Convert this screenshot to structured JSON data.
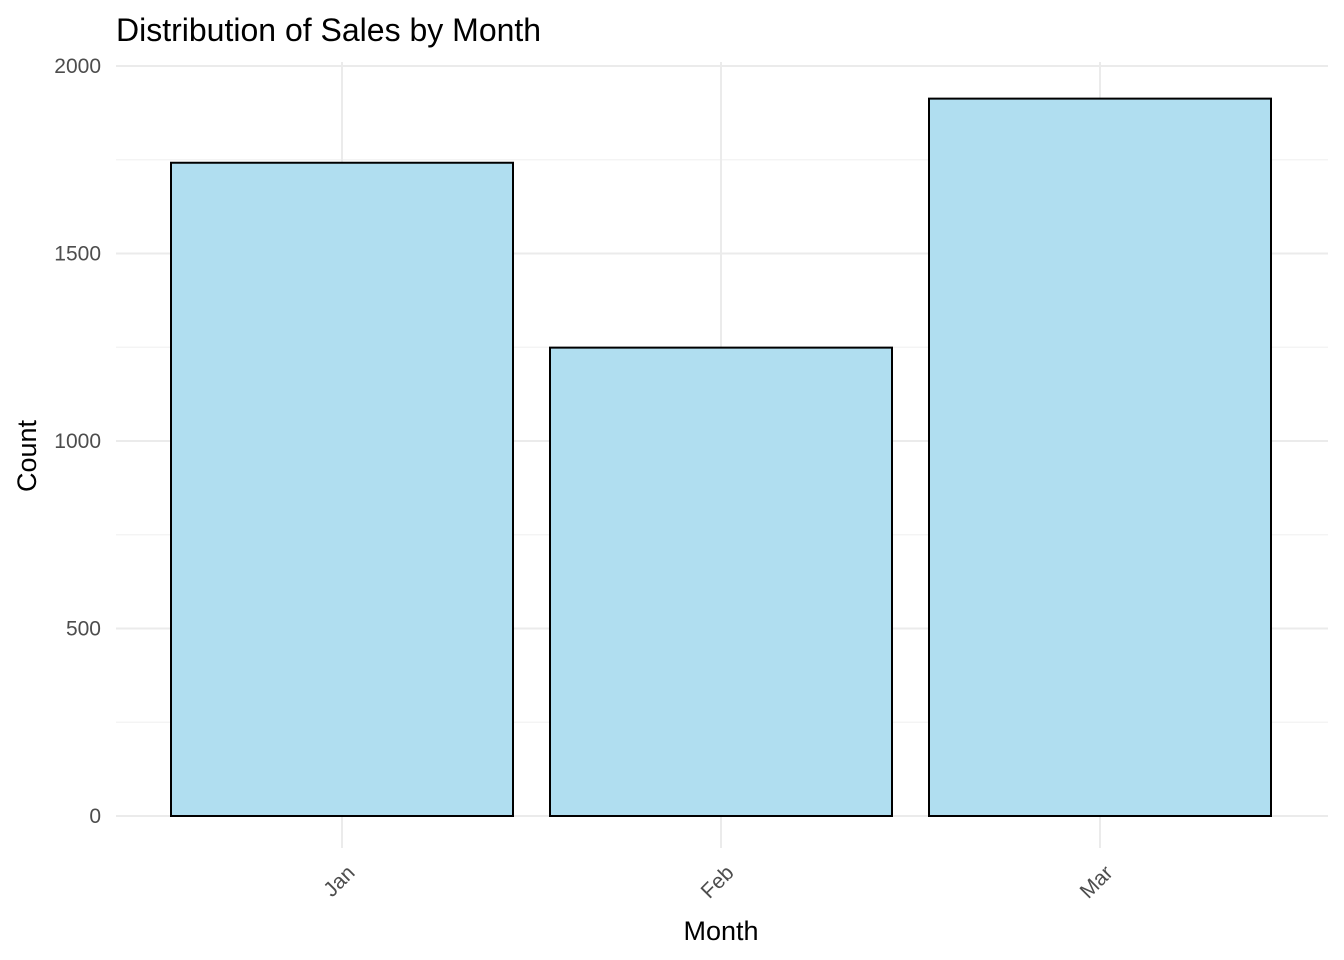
{
  "chart_data": {
    "type": "bar",
    "title": "Distribution of Sales by Month",
    "xlabel": "Month",
    "ylabel": "Count",
    "categories": [
      "Jan",
      "Feb",
      "Mar"
    ],
    "values": [
      1742,
      1249,
      1913
    ],
    "ylim": [
      0,
      2000
    ],
    "yticks": [
      0,
      500,
      1000,
      1500,
      2000
    ],
    "ytick_labels": [
      "0",
      "500",
      "1000",
      "1500",
      "2000"
    ],
    "grid": true,
    "legend": "none",
    "bar_fill": "#ADDDEF",
    "bar_outline": "#000000"
  }
}
